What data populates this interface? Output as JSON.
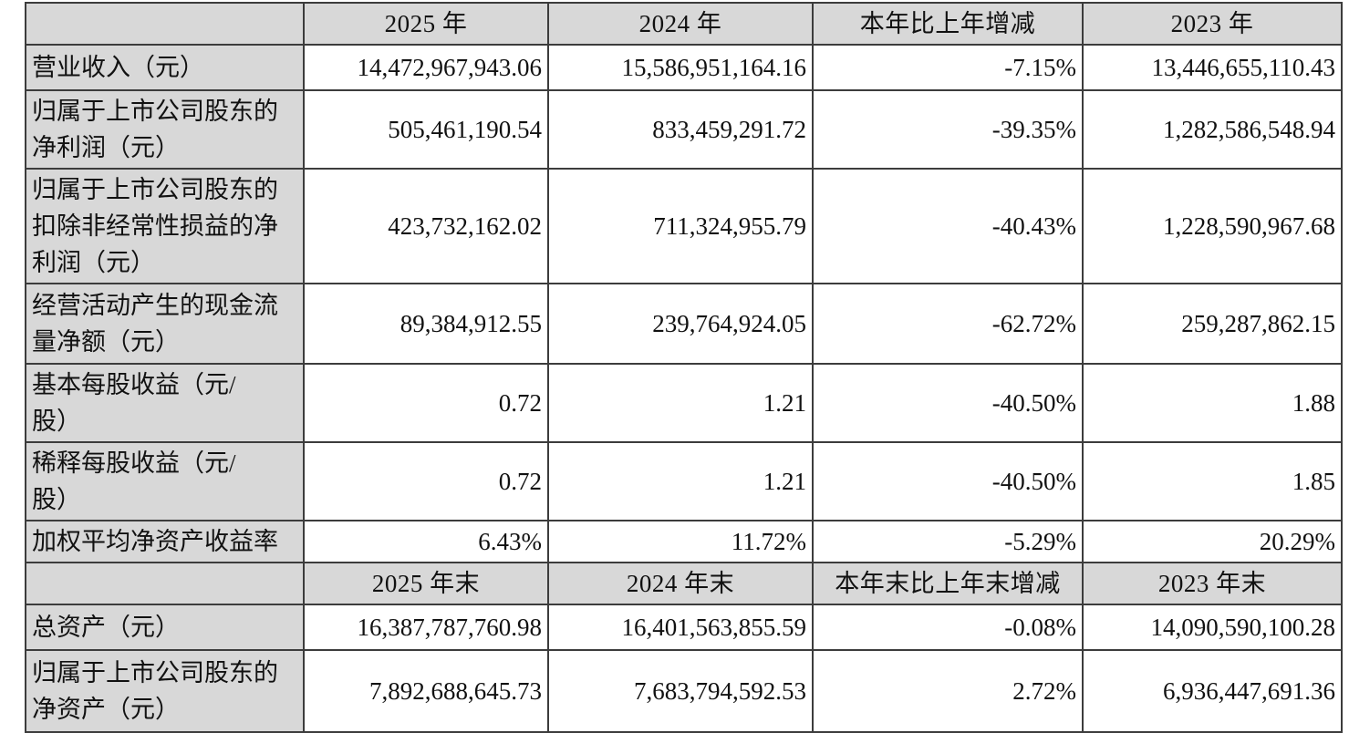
{
  "colors": {
    "header_bg": "#d8d8d8",
    "label_bg": "#d8d8d8",
    "cell_bg": "#ffffff",
    "border": "#3c3c3c",
    "text": "#111111"
  },
  "table": {
    "rows": [
      {
        "type": "header",
        "cells": [
          "",
          "2025 年",
          "2024 年",
          "本年比上年增减",
          "2023 年"
        ]
      },
      {
        "type": "data",
        "label": "营业收入（元）",
        "values": [
          "14,472,967,943.06",
          "15,586,951,164.16",
          "-7.15%",
          "13,446,655,110.43"
        ]
      },
      {
        "type": "data",
        "label": "归属于上市公司股东的\n净利润（元）",
        "values": [
          "505,461,190.54",
          "833,459,291.72",
          "-39.35%",
          "1,282,586,548.94"
        ]
      },
      {
        "type": "data",
        "label": "归属于上市公司股东的\n扣除非经常性损益的净\n利润（元）",
        "values": [
          "423,732,162.02",
          "711,324,955.79",
          "-40.43%",
          "1,228,590,967.68"
        ]
      },
      {
        "type": "data",
        "label": "经营活动产生的现金流\n量净额（元）",
        "values": [
          "89,384,912.55",
          "239,764,924.05",
          "-62.72%",
          "259,287,862.15"
        ]
      },
      {
        "type": "data",
        "label": "基本每股收益（元/\n股）",
        "values": [
          "0.72",
          "1.21",
          "-40.50%",
          "1.88"
        ]
      },
      {
        "type": "data",
        "label": "稀释每股收益（元/\n股）",
        "values": [
          "0.72",
          "1.21",
          "-40.50%",
          "1.85"
        ]
      },
      {
        "type": "data",
        "label": "加权平均净资产收益率",
        "values": [
          "6.43%",
          "11.72%",
          "-5.29%",
          "20.29%"
        ]
      },
      {
        "type": "header",
        "cells": [
          "",
          "2025 年末",
          "2024 年末",
          "本年末比上年末增减",
          "2023 年末"
        ]
      },
      {
        "type": "data",
        "label": "总资产（元）",
        "values": [
          "16,387,787,760.98",
          "16,401,563,855.59",
          "-0.08%",
          "14,090,590,100.28"
        ]
      },
      {
        "type": "data",
        "label": "归属于上市公司股东的\n净资产（元）",
        "values": [
          "7,892,688,645.73",
          "7,683,794,592.53",
          "2.72%",
          "6,936,447,691.36"
        ]
      }
    ]
  }
}
